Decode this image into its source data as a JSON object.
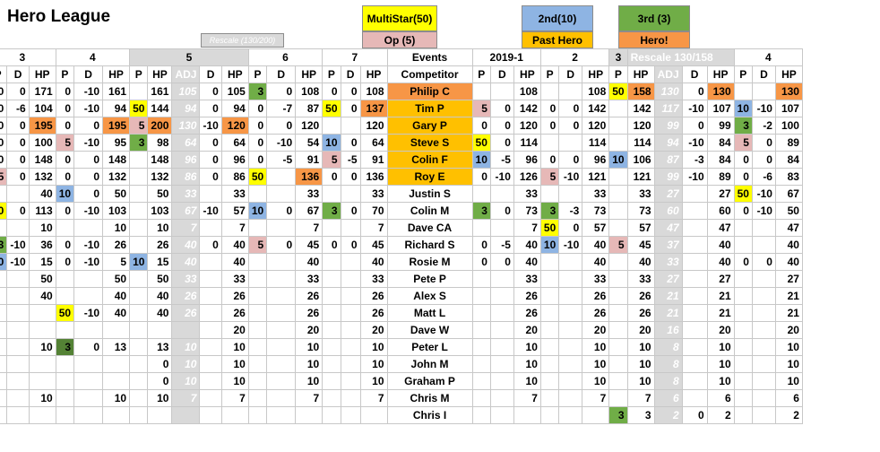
{
  "title": "Hero League",
  "header": {
    "rescale_small": "Rescale (130/200)",
    "multistar": "MultiStar(50)",
    "op": "Op (5)",
    "second": "2nd(10)",
    "past_hero": "Past Hero",
    "third": "3rd (3)",
    "hero": "Hero!"
  },
  "colors": {
    "yellow": "#ffff00",
    "green": "#70ad47",
    "blue": "#8eb4e3",
    "orange": "#ffc000",
    "pink": "#e6b8b7",
    "gray": "#d9d9d9",
    "dark_green": "#548235",
    "dark_orange": "#f79646"
  },
  "section_row": [
    "3",
    "4",
    "5",
    "6",
    "7",
    "Events",
    "2019-1",
    "2",
    "3",
    "Rescale 130/158",
    "4"
  ],
  "headers": [
    "P",
    "D",
    "HP",
    "P",
    "D",
    "HP",
    "P",
    "HP",
    "ADJ",
    "D",
    "HP",
    "P",
    "D",
    "HP",
    "P",
    "D",
    "HP",
    "Competitor",
    "P",
    "D",
    "HP",
    "P",
    "D",
    "HP",
    "P",
    "HP",
    "ADJ",
    "D",
    "HP",
    "P",
    "D",
    "HP"
  ],
  "rows": [
    {
      "cells": [
        "0",
        "0",
        "171",
        "0",
        "-10",
        "161",
        "",
        "161",
        "105",
        "0",
        "105",
        "3",
        "0",
        "108",
        "0",
        "0",
        "108",
        "Philip C",
        "",
        "",
        "108",
        "",
        "",
        "108",
        "50",
        "158",
        "130",
        "0",
        "130",
        "",
        "",
        "130"
      ],
      "hl": {
        "11": "g",
        "17": "or",
        "24": "y",
        "25": "or",
        "28": "or",
        "31": "or"
      }
    },
    {
      "cells": [
        "0",
        "-6",
        "104",
        "0",
        "-10",
        "94",
        "50",
        "144",
        "94",
        "0",
        "94",
        "0",
        "-7",
        "87",
        "50",
        "0",
        "137",
        "Tim P",
        "5",
        "0",
        "142",
        "0",
        "0",
        "142",
        "",
        "142",
        "117",
        "-10",
        "107",
        "10",
        "-10",
        "107"
      ],
      "hl": {
        "6": "y",
        "14": "y",
        "16": "or",
        "17": "o",
        "18": "p",
        "29": "b"
      }
    },
    {
      "cells": [
        "0",
        "0",
        "195",
        "0",
        "0",
        "195",
        "5",
        "200",
        "130",
        "-10",
        "120",
        "0",
        "0",
        "120",
        "",
        "",
        "120",
        "Gary P",
        "0",
        "0",
        "120",
        "0",
        "0",
        "120",
        "",
        "120",
        "99",
        "0",
        "99",
        "3",
        "-2",
        "100"
      ],
      "hl": {
        "2": "or",
        "5": "or",
        "6": "p",
        "7": "or",
        "10": "or",
        "17": "o",
        "29": "g"
      }
    },
    {
      "cells": [
        "0",
        "0",
        "100",
        "5",
        "-10",
        "95",
        "3",
        "98",
        "64",
        "0",
        "64",
        "0",
        "-10",
        "54",
        "10",
        "0",
        "64",
        "Steve S",
        "50",
        "0",
        "114",
        "",
        "",
        "114",
        "",
        "114",
        "94",
        "-10",
        "84",
        "5",
        "0",
        "89"
      ],
      "hl": {
        "3": "p",
        "6": "g",
        "14": "b",
        "17": "o",
        "18": "y",
        "29": "p"
      }
    },
    {
      "cells": [
        "0",
        "0",
        "148",
        "0",
        "0",
        "148",
        "",
        "148",
        "96",
        "0",
        "96",
        "0",
        "-5",
        "91",
        "5",
        "-5",
        "91",
        "Colin F",
        "10",
        "-5",
        "96",
        "0",
        "0",
        "96",
        "10",
        "106",
        "87",
        "-3",
        "84",
        "0",
        "0",
        "84"
      ],
      "hl": {
        "14": "p",
        "17": "o",
        "18": "b",
        "24": "b"
      }
    },
    {
      "cells": [
        "5",
        "0",
        "132",
        "0",
        "0",
        "132",
        "",
        "132",
        "86",
        "0",
        "86",
        "50",
        "",
        "136",
        "0",
        "0",
        "136",
        "Roy E",
        "0",
        "-10",
        "126",
        "5",
        "-10",
        "121",
        "",
        "121",
        "99",
        "-10",
        "89",
        "0",
        "-6",
        "83"
      ],
      "hl": {
        "0": "p",
        "11": "y",
        "13": "or",
        "17": "o",
        "21": "p"
      }
    },
    {
      "cells": [
        "",
        "",
        "40",
        "10",
        "0",
        "50",
        "",
        "50",
        "33",
        "",
        "33",
        "",
        "",
        "33",
        "",
        "",
        "33",
        "Justin S",
        "",
        "",
        "33",
        "",
        "",
        "33",
        "",
        "33",
        "27",
        "",
        "27",
        "50",
        "-10",
        "67"
      ],
      "hl": {
        "3": "b",
        "29": "y"
      }
    },
    {
      "cells": [
        "50",
        "0",
        "113",
        "0",
        "-10",
        "103",
        "",
        "103",
        "67",
        "-10",
        "57",
        "10",
        "0",
        "67",
        "3",
        "0",
        "70",
        "Colin M",
        "3",
        "0",
        "73",
        "3",
        "-3",
        "73",
        "",
        "73",
        "60",
        "",
        "60",
        "0",
        "-10",
        "50"
      ],
      "hl": {
        "0": "y",
        "11": "b",
        "14": "g",
        "18": "g",
        "21": "g"
      }
    },
    {
      "cells": [
        "",
        "",
        "10",
        "",
        "",
        "10",
        "",
        "10",
        "7",
        "",
        "7",
        "",
        "",
        "7",
        "",
        "",
        "7",
        "Dave CA",
        "",
        "",
        "7",
        "50",
        "0",
        "57",
        "",
        "57",
        "47",
        "",
        "47",
        "",
        "",
        "47"
      ],
      "hl": {
        "21": "y"
      }
    },
    {
      "cells": [
        "3",
        "-10",
        "36",
        "0",
        "-10",
        "26",
        "",
        "26",
        "40",
        "0",
        "40",
        "5",
        "0",
        "45",
        "0",
        "0",
        "45",
        "Richard S",
        "0",
        "-5",
        "40",
        "10",
        "-10",
        "40",
        "5",
        "45",
        "37",
        "",
        "40",
        "",
        "",
        "40"
      ],
      "hl": {
        "0": "g",
        "11": "p",
        "21": "b",
        "24": "p"
      }
    },
    {
      "cells": [
        "10",
        "-10",
        "15",
        "0",
        "-10",
        "5",
        "10",
        "15",
        "40",
        "",
        "40",
        "",
        "",
        "40",
        "",
        "",
        "40",
        "Rosie M",
        "0",
        "0",
        "40",
        "",
        "",
        "40",
        "",
        "40",
        "33",
        "",
        "40",
        "0",
        "0",
        "40"
      ],
      "hl": {
        "0": "b",
        "6": "b"
      }
    },
    {
      "cells": [
        "",
        "",
        "50",
        "",
        "",
        "50",
        "",
        "50",
        "33",
        "",
        "33",
        "",
        "",
        "33",
        "",
        "",
        "33",
        "Pete P",
        "",
        "",
        "33",
        "",
        "",
        "33",
        "",
        "33",
        "27",
        "",
        "27",
        "",
        "",
        "27"
      ],
      "hl": {}
    },
    {
      "cells": [
        "",
        "",
        "40",
        "",
        "",
        "40",
        "",
        "40",
        "26",
        "",
        "26",
        "",
        "",
        "26",
        "",
        "",
        "26",
        "Alex S",
        "",
        "",
        "26",
        "",
        "",
        "26",
        "",
        "26",
        "21",
        "",
        "21",
        "",
        "",
        "21"
      ],
      "hl": {}
    },
    {
      "cells": [
        "",
        "",
        "",
        "50",
        "-10",
        "40",
        "",
        "40",
        "26",
        "",
        "26",
        "",
        "",
        "26",
        "",
        "",
        "26",
        "Matt L",
        "",
        "",
        "26",
        "",
        "",
        "26",
        "",
        "26",
        "21",
        "",
        "21",
        "",
        "",
        "21"
      ],
      "hl": {
        "3": "y"
      }
    },
    {
      "cells": [
        "",
        "",
        "",
        "",
        "",
        "",
        "",
        "",
        "",
        "",
        "20",
        "",
        "",
        "20",
        "",
        "",
        "20",
        "Dave W",
        "",
        "",
        "20",
        "",
        "",
        "20",
        "",
        "20",
        "16",
        "",
        "20",
        "",
        "",
        "20"
      ],
      "hl": {}
    },
    {
      "cells": [
        "",
        "",
        "10",
        "3",
        "0",
        "13",
        "",
        "13",
        "10",
        "",
        "10",
        "",
        "",
        "10",
        "",
        "",
        "10",
        "Peter L",
        "",
        "",
        "10",
        "",
        "",
        "10",
        "",
        "10",
        "8",
        "",
        "10",
        "",
        "",
        "10"
      ],
      "hl": {
        "3": "dg"
      }
    },
    {
      "cells": [
        "",
        "",
        "",
        "",
        "",
        "",
        "",
        "0",
        "10",
        "",
        "10",
        "",
        "",
        "10",
        "",
        "",
        "10",
        "John M",
        "",
        "",
        "10",
        "",
        "",
        "10",
        "",
        "10",
        "8",
        "",
        "10",
        "",
        "",
        "10"
      ],
      "hl": {}
    },
    {
      "cells": [
        "",
        "",
        "",
        "",
        "",
        "",
        "",
        "0",
        "10",
        "",
        "10",
        "",
        "",
        "10",
        "",
        "",
        "10",
        "Graham P",
        "",
        "",
        "10",
        "",
        "",
        "10",
        "",
        "10",
        "8",
        "",
        "10",
        "",
        "",
        "10"
      ],
      "hl": {}
    },
    {
      "cells": [
        "",
        "",
        "10",
        "",
        "",
        "10",
        "",
        "10",
        "7",
        "",
        "7",
        "",
        "",
        "7",
        "",
        "",
        "7",
        "Chris M",
        "",
        "",
        "7",
        "",
        "",
        "7",
        "",
        "7",
        "6",
        "",
        "6",
        "",
        "",
        "6"
      ],
      "hl": {}
    },
    {
      "cells": [
        "",
        "",
        "",
        "",
        "",
        "",
        "",
        "",
        "",
        "",
        "",
        "",
        "",
        "",
        "",
        "",
        "",
        "Chris I",
        "",
        "",
        "",
        "",
        "",
        "",
        "3",
        "3",
        "2",
        "0",
        "2",
        "",
        "",
        "2"
      ],
      "hl": {
        "24": "g"
      }
    }
  ]
}
